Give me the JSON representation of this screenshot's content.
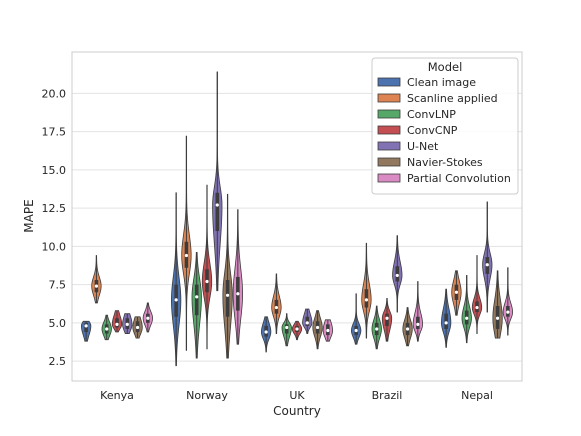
{
  "chart_data": {
    "type": "violin",
    "xlabel": "Country",
    "ylabel": "MAPE",
    "ylim": [
      1.2,
      22.7
    ],
    "yticks": [
      2.5,
      5.0,
      7.5,
      10.0,
      12.5,
      15.0,
      17.5,
      20.0
    ],
    "ytick_labels": [
      "2.5",
      "5.0",
      "7.5",
      "10.0",
      "12.5",
      "15.0",
      "17.5",
      "20.0"
    ],
    "grid": true,
    "categories": [
      "Kenya",
      "Norway",
      "UK",
      "Brazil",
      "Nepal"
    ],
    "legend": {
      "title": "Model",
      "placement": "top-right",
      "entries": [
        "Clean image",
        "Scanline applied",
        "ConvLNP",
        "ConvCNP",
        "U-Net",
        "Navier-Stokes",
        "Partial Convolution"
      ]
    },
    "series": [
      {
        "name": "Clean image",
        "color": "#4c72b0",
        "min": [
          3.8,
          2.2,
          3.1,
          3.6,
          3.4
        ],
        "q1": [
          4.4,
          5.4,
          4.1,
          4.2,
          4.6
        ],
        "median": [
          4.8,
          6.5,
          4.4,
          4.5,
          5.0
        ],
        "q3": [
          5.0,
          7.5,
          4.8,
          4.8,
          5.6
        ],
        "max": [
          5.1,
          13.5,
          5.4,
          6.9,
          7.2
        ]
      },
      {
        "name": "Scanline applied",
        "color": "#dd8452",
        "min": [
          6.3,
          3.2,
          4.3,
          4.0,
          5.5
        ],
        "q1": [
          7.0,
          8.6,
          5.6,
          6.0,
          6.5
        ],
        "median": [
          7.4,
          9.4,
          6.0,
          6.5,
          7.0
        ],
        "q3": [
          7.8,
          10.3,
          6.5,
          7.2,
          7.5
        ],
        "max": [
          9.4,
          17.2,
          8.2,
          10.2,
          8.4
        ]
      },
      {
        "name": "ConvLNP",
        "color": "#55a868",
        "min": [
          3.9,
          2.7,
          3.5,
          3.3,
          3.7
        ],
        "q1": [
          4.3,
          5.5,
          4.3,
          4.2,
          4.9
        ],
        "median": [
          4.6,
          6.7,
          4.7,
          4.6,
          5.3
        ],
        "q3": [
          4.9,
          7.5,
          4.9,
          5.0,
          5.8
        ],
        "max": [
          5.5,
          9.6,
          5.6,
          6.1,
          8.1
        ]
      },
      {
        "name": "ConvCNP",
        "color": "#c44e52",
        "min": [
          4.4,
          3.3,
          3.9,
          3.8,
          4.3
        ],
        "q1": [
          4.7,
          7.0,
          4.4,
          4.8,
          5.7
        ],
        "median": [
          4.9,
          7.7,
          4.6,
          5.3,
          6.0
        ],
        "q3": [
          5.3,
          8.5,
          4.8,
          5.6,
          6.4
        ],
        "max": [
          5.8,
          14.0,
          5.1,
          6.6,
          9.4
        ]
      },
      {
        "name": "U-Net",
        "color": "#8172b3",
        "min": [
          4.3,
          7.1,
          4.3,
          5.7,
          5.7
        ],
        "q1": [
          4.6,
          11.0,
          4.8,
          7.7,
          8.2
        ],
        "median": [
          4.9,
          12.7,
          5.0,
          8.1,
          8.8
        ],
        "q3": [
          5.3,
          13.5,
          5.4,
          8.7,
          9.3
        ],
        "max": [
          5.6,
          21.4,
          5.9,
          10.7,
          12.9
        ]
      },
      {
        "name": "Navier-Stokes",
        "color": "#937860",
        "min": [
          4.0,
          2.7,
          3.3,
          3.5,
          4.0
        ],
        "q1": [
          4.4,
          5.4,
          4.3,
          4.2,
          4.6
        ],
        "median": [
          4.7,
          6.8,
          4.7,
          4.6,
          5.3
        ],
        "q3": [
          5.1,
          7.8,
          5.1,
          5.0,
          6.1
        ],
        "max": [
          5.4,
          13.4,
          5.8,
          6.0,
          8.4
        ]
      },
      {
        "name": "Partial Convolution",
        "color": "#da8bc3",
        "min": [
          4.4,
          3.6,
          3.8,
          3.8,
          4.2
        ],
        "q1": [
          5.0,
          5.8,
          4.2,
          4.6,
          5.4
        ],
        "median": [
          5.3,
          6.9,
          4.5,
          4.9,
          5.7
        ],
        "q3": [
          5.6,
          8.0,
          4.9,
          5.4,
          6.1
        ],
        "max": [
          6.3,
          12.4,
          5.2,
          7.7,
          8.6
        ]
      }
    ]
  }
}
